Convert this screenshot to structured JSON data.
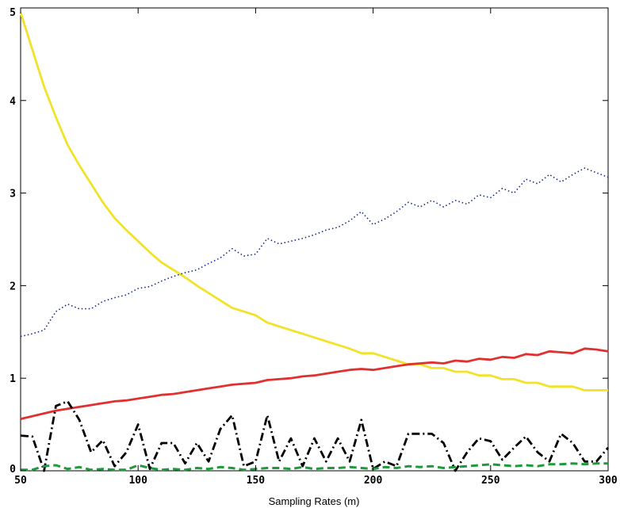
{
  "chart_data": {
    "type": "line",
    "title": "",
    "xlabel": "Sampling Rates (m)",
    "ylabel": "",
    "xlim": [
      50,
      300
    ],
    "ylim": [
      0,
      5
    ],
    "xticks": [
      50,
      100,
      150,
      200,
      250,
      300
    ],
    "yticks": [
      0,
      1,
      2,
      3,
      4,
      5
    ],
    "xtick_labels": [
      "50",
      "100",
      "150",
      "200",
      "250",
      "300"
    ],
    "ytick_labels": [
      "0",
      "1",
      "2",
      "3",
      "4",
      "5"
    ],
    "grid": false,
    "legend": "none",
    "series": [
      {
        "color": "#f2e22a",
        "style": "solid",
        "x": [
          50,
          55,
          60,
          65,
          70,
          75,
          80,
          85,
          90,
          95,
          100,
          105,
          110,
          115,
          120,
          125,
          130,
          135,
          140,
          145,
          150,
          155,
          160,
          165,
          170,
          175,
          180,
          185,
          190,
          195,
          200,
          205,
          210,
          215,
          220,
          225,
          230,
          235,
          240,
          245,
          250,
          255,
          260,
          265,
          270,
          275,
          280,
          285,
          290,
          295,
          300
        ],
        "values": [
          4.95,
          4.55,
          4.15,
          3.82,
          3.52,
          3.3,
          3.1,
          2.9,
          2.73,
          2.6,
          2.48,
          2.36,
          2.25,
          2.17,
          2.09,
          2.0,
          1.92,
          1.84,
          1.76,
          1.72,
          1.68,
          1.6,
          1.56,
          1.52,
          1.48,
          1.44,
          1.4,
          1.36,
          1.32,
          1.27,
          1.27,
          1.23,
          1.19,
          1.15,
          1.15,
          1.11,
          1.11,
          1.07,
          1.07,
          1.03,
          1.03,
          0.99,
          0.99,
          0.95,
          0.95,
          0.91,
          0.91,
          0.91,
          0.87,
          0.87,
          0.87
        ]
      },
      {
        "color": "#e03030",
        "style": "solid",
        "x": [
          50,
          55,
          60,
          65,
          70,
          75,
          80,
          85,
          90,
          95,
          100,
          105,
          110,
          115,
          120,
          125,
          130,
          135,
          140,
          145,
          150,
          155,
          160,
          165,
          170,
          175,
          180,
          185,
          190,
          195,
          200,
          205,
          210,
          215,
          220,
          225,
          230,
          235,
          240,
          245,
          250,
          255,
          260,
          265,
          270,
          275,
          280,
          285,
          290,
          295,
          300
        ],
        "values": [
          0.56,
          0.59,
          0.62,
          0.65,
          0.67,
          0.69,
          0.71,
          0.73,
          0.75,
          0.76,
          0.78,
          0.8,
          0.82,
          0.83,
          0.85,
          0.87,
          0.89,
          0.91,
          0.93,
          0.94,
          0.95,
          0.98,
          0.99,
          1.0,
          1.02,
          1.03,
          1.05,
          1.07,
          1.09,
          1.1,
          1.09,
          1.11,
          1.13,
          1.15,
          1.16,
          1.17,
          1.16,
          1.19,
          1.18,
          1.21,
          1.2,
          1.23,
          1.22,
          1.26,
          1.25,
          1.29,
          1.28,
          1.27,
          1.32,
          1.31,
          1.29
        ]
      },
      {
        "color": "#1a2a8a",
        "style": "dotted",
        "x": [
          50,
          55,
          60,
          65,
          70,
          75,
          80,
          85,
          90,
          95,
          100,
          105,
          110,
          115,
          120,
          125,
          130,
          135,
          140,
          145,
          150,
          155,
          160,
          165,
          170,
          175,
          180,
          185,
          190,
          195,
          200,
          205,
          210,
          215,
          220,
          225,
          230,
          235,
          240,
          245,
          250,
          255,
          260,
          265,
          270,
          275,
          280,
          285,
          290,
          295,
          300
        ],
        "values": [
          1.45,
          1.48,
          1.52,
          1.72,
          1.8,
          1.75,
          1.75,
          1.83,
          1.87,
          1.9,
          1.97,
          1.99,
          2.05,
          2.1,
          2.14,
          2.17,
          2.24,
          2.3,
          2.4,
          2.32,
          2.34,
          2.51,
          2.45,
          2.48,
          2.51,
          2.55,
          2.6,
          2.63,
          2.7,
          2.8,
          2.66,
          2.72,
          2.8,
          2.9,
          2.85,
          2.92,
          2.85,
          2.92,
          2.88,
          2.98,
          2.95,
          3.05,
          3.0,
          3.15,
          3.1,
          3.2,
          3.12,
          3.2,
          3.27,
          3.22,
          3.17
        ]
      },
      {
        "color": "#000000",
        "style": "dashdot",
        "x": [
          50,
          55,
          60,
          65,
          70,
          75,
          80,
          85,
          90,
          95,
          100,
          105,
          110,
          115,
          120,
          125,
          130,
          135,
          140,
          145,
          150,
          155,
          160,
          165,
          170,
          175,
          180,
          185,
          190,
          195,
          200,
          205,
          210,
          215,
          220,
          225,
          230,
          235,
          240,
          245,
          250,
          255,
          260,
          265,
          270,
          275,
          280,
          285,
          290,
          295,
          300
        ],
        "values": [
          0.38,
          0.37,
          0.0,
          0.7,
          0.75,
          0.55,
          0.2,
          0.33,
          0.05,
          0.2,
          0.5,
          0.02,
          0.3,
          0.3,
          0.08,
          0.3,
          0.1,
          0.45,
          0.6,
          0.05,
          0.1,
          0.6,
          0.1,
          0.35,
          0.05,
          0.35,
          0.1,
          0.35,
          0.1,
          0.55,
          0.02,
          0.1,
          0.05,
          0.4,
          0.4,
          0.4,
          0.3,
          0.0,
          0.2,
          0.35,
          0.32,
          0.12,
          0.25,
          0.37,
          0.2,
          0.1,
          0.4,
          0.3,
          0.1,
          0.1,
          0.25
        ]
      },
      {
        "color": "#1f9a3a",
        "style": "dashed",
        "x": [
          50,
          55,
          60,
          65,
          70,
          75,
          80,
          85,
          90,
          95,
          100,
          105,
          110,
          115,
          120,
          125,
          130,
          135,
          140,
          145,
          150,
          155,
          160,
          165,
          170,
          175,
          180,
          185,
          190,
          195,
          200,
          205,
          210,
          215,
          220,
          225,
          230,
          235,
          240,
          245,
          250,
          255,
          260,
          265,
          270,
          275,
          280,
          285,
          290,
          295,
          300
        ],
        "values": [
          0.01,
          0.01,
          0.05,
          0.06,
          0.02,
          0.04,
          0.01,
          0.02,
          0.01,
          0.01,
          0.06,
          0.03,
          0.01,
          0.02,
          0.01,
          0.03,
          0.02,
          0.04,
          0.03,
          0.01,
          0.02,
          0.03,
          0.03,
          0.02,
          0.04,
          0.02,
          0.03,
          0.03,
          0.04,
          0.03,
          0.02,
          0.04,
          0.03,
          0.05,
          0.04,
          0.05,
          0.03,
          0.04,
          0.05,
          0.06,
          0.07,
          0.06,
          0.05,
          0.06,
          0.05,
          0.07,
          0.07,
          0.08,
          0.07,
          0.08,
          0.08
        ]
      }
    ]
  }
}
